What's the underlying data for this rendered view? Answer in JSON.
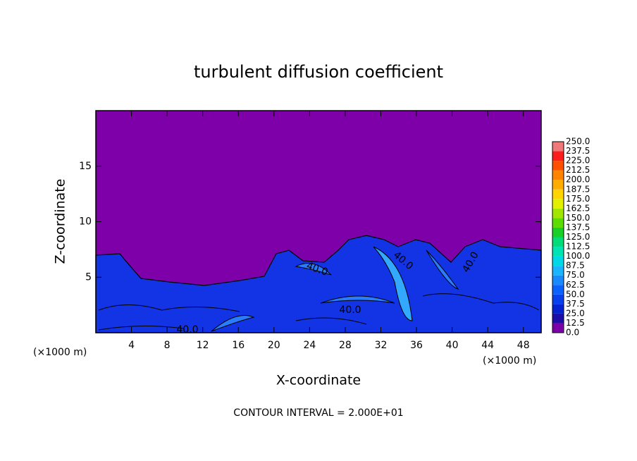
{
  "chart_data": {
    "type": "contour",
    "title": "turbulent diffusion coefficient",
    "x_label": "X-coordinate",
    "y_label": "Z-coordinate",
    "unit_labels": [
      "(×1000 m)",
      "(×1000 m)"
    ],
    "xlim": [
      0,
      50
    ],
    "xticks": [
      4,
      8,
      12,
      16,
      20,
      24,
      28,
      32,
      36,
      40,
      44,
      48
    ],
    "ylim": [
      0,
      20
    ],
    "yticks": [
      5,
      10,
      15
    ],
    "colorbar": {
      "levels": [
        {
          "value": 0,
          "label": "0.0"
        },
        12.5,
        {
          "value": 25,
          "label": "25.0"
        },
        37.5,
        {
          "value": 50,
          "label": "50.0"
        },
        62.5,
        {
          "value": 75,
          "label": "75.0"
        },
        87.5,
        {
          "value": 100,
          "label": "100.0"
        },
        112.5,
        {
          "value": 125,
          "label": "125.0"
        },
        137.5,
        {
          "value": 150,
          "label": "150.0"
        },
        162.5,
        {
          "value": 175,
          "label": "175.0"
        },
        187.5,
        {
          "value": 200,
          "label": "200.0"
        },
        212.5,
        {
          "value": 225,
          "label": "225.0"
        },
        237.5,
        {
          "value": 250,
          "label": "250.0"
        }
      ],
      "colors": [
        "#7b00a8",
        "#1c0ea6",
        "#0422d2",
        "#0840ee",
        "#0a62ff",
        "#1a8aff",
        "#1ab4ff",
        "#00d8e6",
        "#00e4b4",
        "#00dc78",
        "#18d028",
        "#5cdc00",
        "#a0e600",
        "#e2f000",
        "#ffd400",
        "#ffac00",
        "#ff8400",
        "#ff5000",
        "#ff1c1c",
        "#f07878"
      ]
    },
    "contour_labels": [
      "40.0",
      "40.0",
      "40.0",
      "40.0",
      "40.0"
    ],
    "footer": "CONTOUR INTERVAL = 2.000E+01"
  }
}
